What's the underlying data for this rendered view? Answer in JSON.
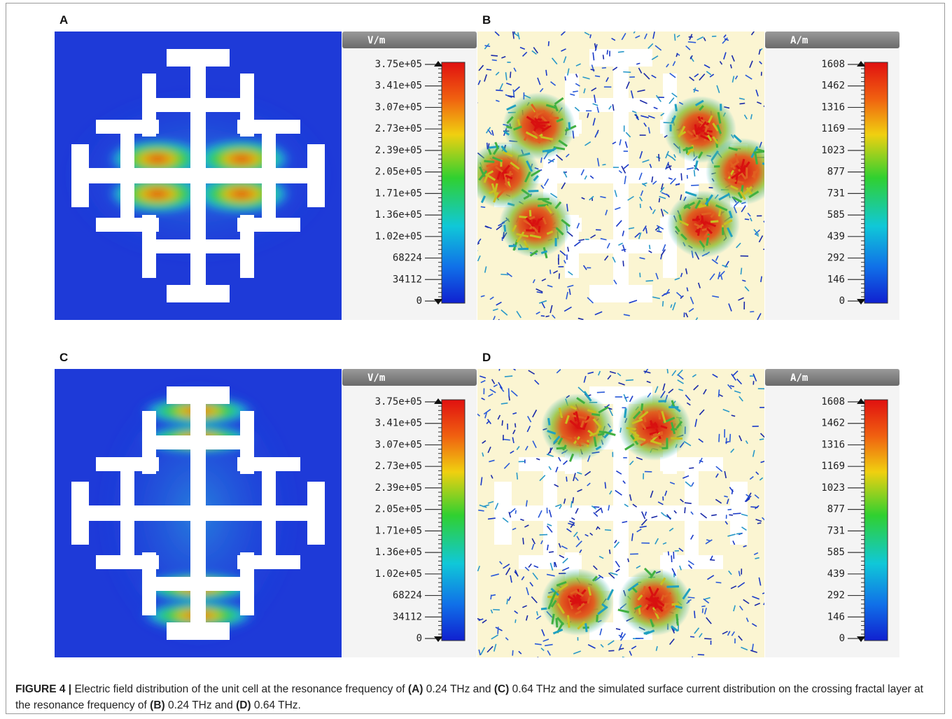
{
  "panels": [
    {
      "label": "A",
      "unit": "V/m",
      "ticks": [
        "3.75e+05",
        "3.41e+05",
        "3.07e+05",
        "2.73e+05",
        "2.39e+05",
        "2.05e+05",
        "1.71e+05",
        "1.36e+05",
        "1.02e+05",
        "68224",
        "34112",
        "0"
      ]
    },
    {
      "label": "B",
      "unit": "A/m",
      "ticks": [
        "1608",
        "1462",
        "1316",
        "1169",
        "1023",
        "877",
        "731",
        "585",
        "439",
        "292",
        "146",
        "0"
      ]
    },
    {
      "label": "C",
      "unit": "V/m",
      "ticks": [
        "3.75e+05",
        "3.41e+05",
        "3.07e+05",
        "2.73e+05",
        "2.39e+05",
        "2.05e+05",
        "1.71e+05",
        "1.36e+05",
        "1.02e+05",
        "68224",
        "34112",
        "0"
      ]
    },
    {
      "label": "D",
      "unit": "A/m",
      "ticks": [
        "1608",
        "1462",
        "1316",
        "1169",
        "1023",
        "877",
        "731",
        "585",
        "439",
        "292",
        "146",
        "0"
      ]
    }
  ],
  "caption": [
    {
      "text": "FIGURE 4 |",
      "bold": true
    },
    {
      "text": " Electric field distribution of the unit cell at the resonance frequency of ",
      "bold": false
    },
    {
      "text": "(A)",
      "bold": true
    },
    {
      "text": " 0.24 THz and ",
      "bold": false
    },
    {
      "text": "(C)",
      "bold": true
    },
    {
      "text": " 0.64 THz and the simulated surface current distribution on the crossing fractal layer at the resonance frequency of ",
      "bold": false
    },
    {
      "text": "(B)",
      "bold": true
    },
    {
      "text": " 0.24 THz and ",
      "bold": false
    },
    {
      "text": "(D)",
      "bold": true
    },
    {
      "text": " 0.64 THz.",
      "bold": false
    }
  ]
}
